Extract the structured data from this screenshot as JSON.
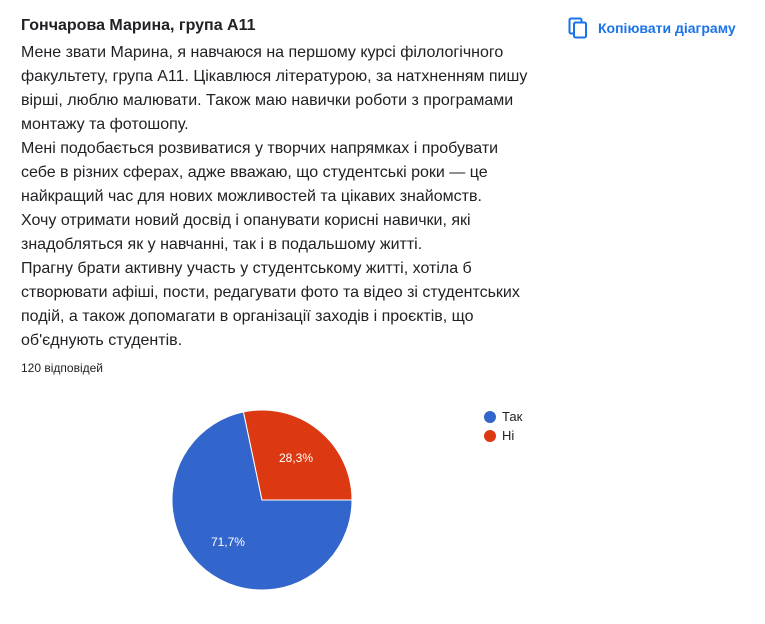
{
  "header": {
    "title": "Гончарова Марина, група А11",
    "copy_label": "Копіювати діаграму",
    "copy_icon": "copy-icon"
  },
  "description": {
    "lines": [
      "Мене звати Марина, я навчаюся на першому курсі філологічного",
      "факультету, група А11. Цікавлюся літературою, за натхненням пишу",
      "вірші, люблю малювати. Також маю навички роботи з програмами",
      "монтажу та фотошопу.",
      "Мені подобається розвиватися у творчих напрямках і пробувати",
      "себе в різних сферах, адже вважаю, що студентські роки — це",
      "найкращий час для нових можливостей та цікавих знайомств.",
      "Хочу отримати новий досвід і опанувати корисні навички, які",
      "знадобляться як у навчанні, так і в подальшому житті.",
      "Прагну брати активну участь у студентському житті, хотіла б",
      "створювати афіші, пости, редагувати фото та відео зі студентських",
      "подій, а також допомагати в організації заходів і проєктів, що",
      "об'єднують студентів."
    ]
  },
  "response_count": "120 відповідей",
  "colors": {
    "accent": "#1a73e8",
    "yes": "#3366cc",
    "no": "#dc3912"
  },
  "chart_data": {
    "type": "pie",
    "categories": [
      "Так",
      "Ні"
    ],
    "values": [
      71.7,
      28.3
    ],
    "labels": [
      "71,7%",
      "28,3%"
    ],
    "colors": [
      "#3366cc",
      "#dc3912"
    ],
    "legend_position": "right",
    "start_angle_deg": 0
  }
}
